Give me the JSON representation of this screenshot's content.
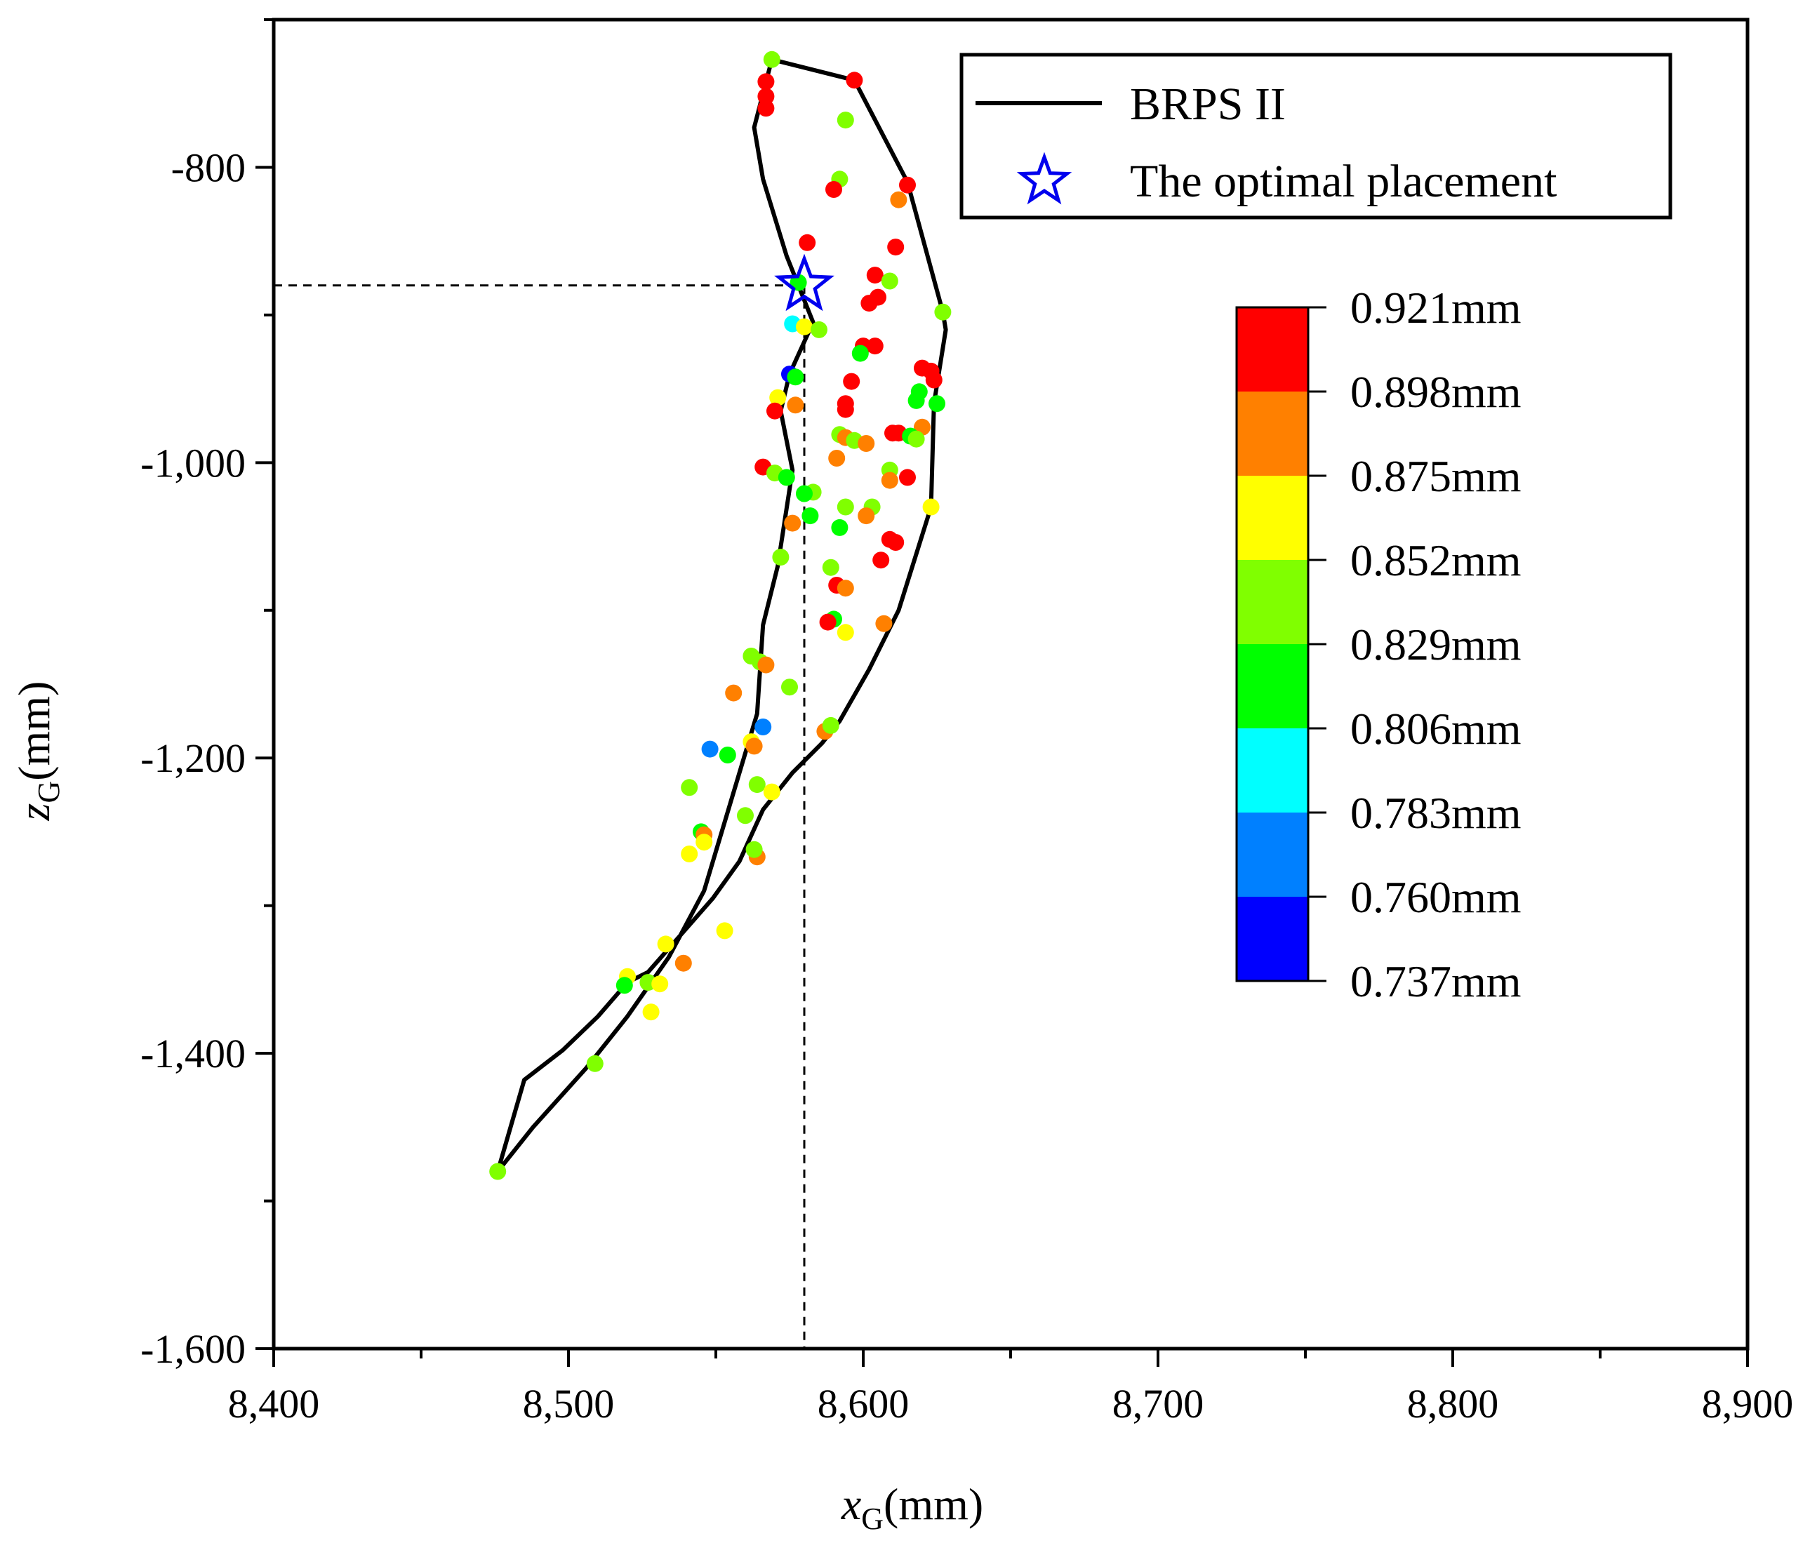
{
  "chart_data": {
    "type": "scatter",
    "xlabel": {
      "var": "x",
      "sub": "G",
      "unit": "(mm)"
    },
    "ylabel": {
      "var": "z",
      "sub": "G",
      "unit": "(mm)"
    },
    "xlim": [
      8400,
      8900
    ],
    "ylim": [
      -1600,
      -700
    ],
    "x_ticks": [
      8400,
      8500,
      8600,
      8700,
      8800,
      8900
    ],
    "x_tick_labels": [
      "8,400",
      "8,500",
      "8,600",
      "8,700",
      "8,800",
      "8,900"
    ],
    "y_ticks": [
      -800,
      -1000,
      -1200,
      -1400,
      -1600
    ],
    "y_tick_labels": [
      "-800",
      "-1,000",
      "-1,200",
      "-1,400",
      "-1,600"
    ],
    "legend": {
      "position": "top-right",
      "entries": [
        {
          "label": "BRPS II",
          "kind": "line"
        },
        {
          "label": "The optimal placement",
          "kind": "star"
        }
      ]
    },
    "colorbar": {
      "labels": [
        "0.921mm",
        "0.898mm",
        "0.875mm",
        "0.852mm",
        "0.829mm",
        "0.806mm",
        "0.783mm",
        "0.760mm",
        "0.737mm"
      ],
      "values": [
        0.921,
        0.898,
        0.875,
        0.852,
        0.829,
        0.806,
        0.783,
        0.76,
        0.737
      ],
      "bands_top_to_bottom": [
        "#ff0000",
        "#ff8000",
        "#ffff00",
        "#80ff00",
        "#00ff00",
        "#00ffff",
        "#0080ff",
        "#0000ff"
      ]
    },
    "boundary": {
      "name": "BRPS II",
      "points": [
        [
          8569,
          -727
        ],
        [
          8597,
          -741
        ],
        [
          8615,
          -810
        ],
        [
          8627,
          -898
        ],
        [
          8628,
          -910
        ],
        [
          8624,
          -960
        ],
        [
          8623,
          -1030
        ],
        [
          8612,
          -1100
        ],
        [
          8602,
          -1140
        ],
        [
          8592,
          -1175
        ],
        [
          8586,
          -1190
        ],
        [
          8576,
          -1210
        ],
        [
          8566,
          -1235
        ],
        [
          8558,
          -1270
        ],
        [
          8549,
          -1295
        ],
        [
          8538,
          -1320
        ],
        [
          8527,
          -1345
        ],
        [
          8520,
          -1352
        ],
        [
          8510,
          -1375
        ],
        [
          8498,
          -1398
        ],
        [
          8485,
          -1418
        ],
        [
          8476,
          -1480
        ],
        [
          8488,
          -1450
        ],
        [
          8506,
          -1410
        ],
        [
          8520,
          -1375
        ],
        [
          8534,
          -1335
        ],
        [
          8546,
          -1290
        ],
        [
          8555,
          -1230
        ],
        [
          8564,
          -1170
        ],
        [
          8566,
          -1110
        ],
        [
          8571,
          -1070
        ],
        [
          8576,
          -1005
        ],
        [
          8572,
          -965
        ],
        [
          8575,
          -940
        ],
        [
          8583,
          -905
        ],
        [
          8578,
          -880
        ],
        [
          8574,
          -860
        ],
        [
          8566,
          -808
        ],
        [
          8563,
          -773
        ],
        [
          8569,
          -727
        ]
      ]
    },
    "optimal": {
      "x": 8580,
      "y": -880
    },
    "points": [
      [
        8569,
        -727,
        0.84
      ],
      [
        8597,
        -741,
        0.92
      ],
      [
        8567,
        -742,
        0.92
      ],
      [
        8567,
        -752,
        0.92
      ],
      [
        8567,
        -760,
        0.92
      ],
      [
        8594,
        -768,
        0.84
      ],
      [
        8592,
        -808,
        0.83
      ],
      [
        8590,
        -815,
        0.92
      ],
      [
        8615,
        -812,
        0.92
      ],
      [
        8612,
        -822,
        0.89
      ],
      [
        8581,
        -851,
        0.92
      ],
      [
        8611,
        -854,
        0.92
      ],
      [
        8604,
        -873,
        0.92
      ],
      [
        8609,
        -877,
        0.84
      ],
      [
        8578,
        -878,
        0.81
      ],
      [
        8605,
        -888,
        0.92
      ],
      [
        8602,
        -892,
        0.92
      ],
      [
        8627,
        -898,
        0.84
      ],
      [
        8576,
        -906,
        0.79
      ],
      [
        8580,
        -908,
        0.86
      ],
      [
        8585,
        -910,
        0.84
      ],
      [
        8600,
        -921,
        0.92
      ],
      [
        8604,
        -921,
        0.92
      ],
      [
        8599,
        -926,
        0.81
      ],
      [
        8620,
        -936,
        0.92
      ],
      [
        8623,
        -938,
        0.92
      ],
      [
        8624,
        -944,
        0.92
      ],
      [
        8575,
        -940,
        0.75
      ],
      [
        8577,
        -942,
        0.81
      ],
      [
        8596,
        -945,
        0.92
      ],
      [
        8619,
        -952,
        0.81
      ],
      [
        8618,
        -958,
        0.81
      ],
      [
        8625,
        -960,
        0.81
      ],
      [
        8594,
        -960,
        0.92
      ],
      [
        8594,
        -964,
        0.92
      ],
      [
        8571,
        -956,
        0.87
      ],
      [
        8577,
        -961,
        0.89
      ],
      [
        8570,
        -965,
        0.92
      ],
      [
        8620,
        -976,
        0.89
      ],
      [
        8612,
        -980,
        0.92
      ],
      [
        8610,
        -980,
        0.92
      ],
      [
        8616,
        -982,
        0.81
      ],
      [
        8618,
        -984,
        0.84
      ],
      [
        8592,
        -981,
        0.84
      ],
      [
        8594,
        -983,
        0.89
      ],
      [
        8597,
        -985,
        0.84
      ],
      [
        8601,
        -987,
        0.89
      ],
      [
        8591,
        -997,
        0.89
      ],
      [
        8566,
        -1003,
        0.92
      ],
      [
        8570,
        -1007,
        0.83
      ],
      [
        8574,
        -1010,
        0.81
      ],
      [
        8609,
        -1005,
        0.83
      ],
      [
        8615,
        -1010,
        0.92
      ],
      [
        8609,
        -1012,
        0.89
      ],
      [
        8583,
        -1020,
        0.83
      ],
      [
        8580,
        -1021,
        0.81
      ],
      [
        8594,
        -1030,
        0.85
      ],
      [
        8603,
        -1030,
        0.83
      ],
      [
        8623,
        -1030,
        0.87
      ],
      [
        8582,
        -1036,
        0.82
      ],
      [
        8601,
        -1036,
        0.89
      ],
      [
        8576,
        -1041,
        0.89
      ],
      [
        8592,
        -1044,
        0.81
      ],
      [
        8609,
        -1052,
        0.92
      ],
      [
        8611,
        -1054,
        0.92
      ],
      [
        8572,
        -1064,
        0.83
      ],
      [
        8606,
        -1066,
        0.92
      ],
      [
        8589,
        -1071,
        0.84
      ],
      [
        8591,
        -1083,
        0.92
      ],
      [
        8594,
        -1085,
        0.89
      ],
      [
        8590,
        -1106,
        0.81
      ],
      [
        8588,
        -1108,
        0.92
      ],
      [
        8594,
        -1115,
        0.87
      ],
      [
        8607,
        -1109,
        0.89
      ],
      [
        8562,
        -1131,
        0.85
      ],
      [
        8565,
        -1135,
        0.83
      ],
      [
        8567,
        -1137,
        0.89
      ],
      [
        8575,
        -1152,
        0.84
      ],
      [
        8556,
        -1156,
        0.89
      ],
      [
        8587,
        -1182,
        0.89
      ],
      [
        8589,
        -1178,
        0.83
      ],
      [
        8566,
        -1179,
        0.77
      ],
      [
        8562,
        -1189,
        0.87
      ],
      [
        8563,
        -1192,
        0.89
      ],
      [
        8548,
        -1194,
        0.77
      ],
      [
        8554,
        -1198,
        0.81
      ],
      [
        8564,
        -1218,
        0.84
      ],
      [
        8569,
        -1223,
        0.86
      ],
      [
        8541,
        -1220,
        0.85
      ],
      [
        8560,
        -1239,
        0.84
      ],
      [
        8545,
        -1250,
        0.81
      ],
      [
        8546,
        -1252,
        0.89
      ],
      [
        8546,
        -1257,
        0.87
      ],
      [
        8541,
        -1265,
        0.87
      ],
      [
        8564,
        -1267,
        0.89
      ],
      [
        8563,
        -1262,
        0.83
      ],
      [
        8553,
        -1317,
        0.87
      ],
      [
        8533,
        -1326,
        0.87
      ],
      [
        8539,
        -1339,
        0.89
      ],
      [
        8520,
        -1348,
        0.87
      ],
      [
        8527,
        -1352,
        0.83
      ],
      [
        8531,
        -1353,
        0.87
      ],
      [
        8519,
        -1354,
        0.81
      ],
      [
        8528,
        -1372,
        0.87
      ],
      [
        8509,
        -1407,
        0.85
      ],
      [
        8476,
        -1480,
        0.85
      ]
    ]
  }
}
